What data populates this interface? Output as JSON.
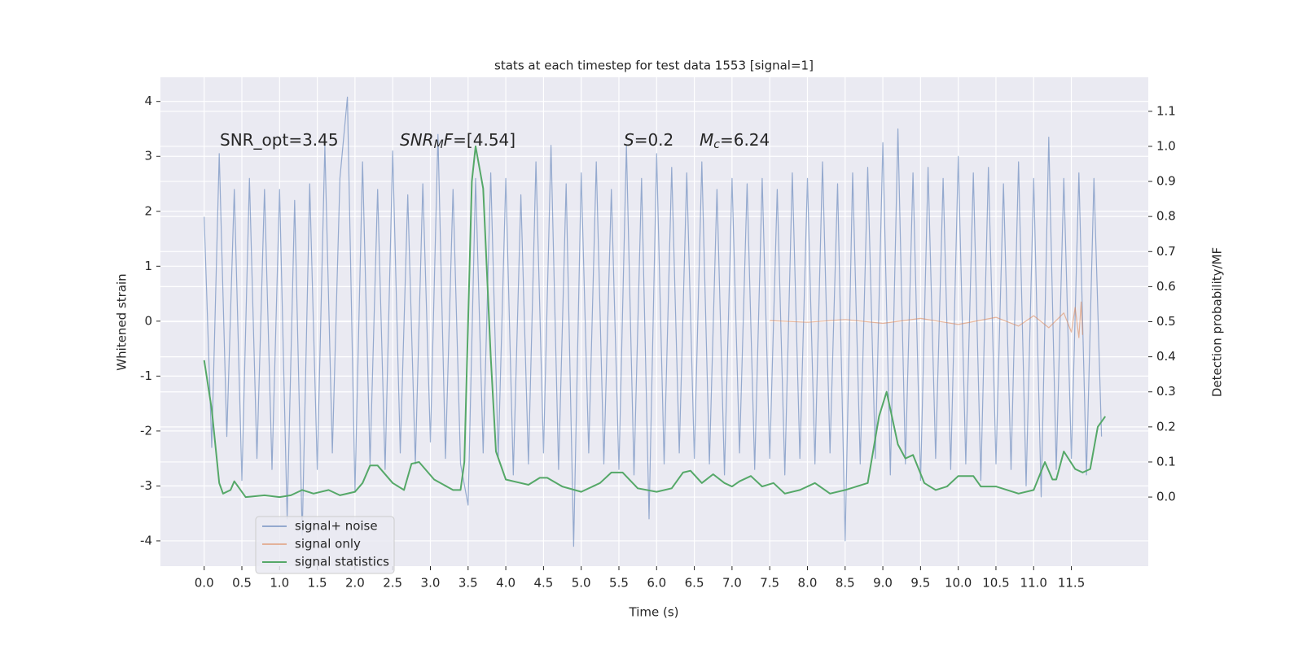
{
  "chart_data": {
    "type": "line",
    "title": "stats at each timestep for test data 1553 [signal=1]",
    "xlabel": "Time (s)",
    "ylabel": "Whitened strain",
    "y2label": "Detection probability/MF",
    "xlim": [
      -0.58,
      12.52
    ],
    "ylim": [
      -4.46,
      4.44
    ],
    "y2lim": [
      -0.197,
      1.197
    ],
    "xticks": [
      {
        "value": 0,
        "label": "0.0"
      },
      0.5,
      {
        "value": 1,
        "label": "1.0"
      },
      1.5,
      {
        "value": 2,
        "label": "2.0"
      },
      2.5,
      {
        "value": 3,
        "label": "3.0"
      },
      3.5,
      {
        "value": 4,
        "label": "4.0"
      },
      4.5,
      {
        "value": 5,
        "label": "5.0"
      },
      5.5,
      {
        "value": 6,
        "label": "6.0"
      },
      6.5,
      {
        "value": 7,
        "label": "7.0"
      },
      7.5,
      {
        "value": 8,
        "label": "8.0"
      },
      8.5,
      {
        "value": 9,
        "label": "9.0"
      },
      9.5,
      {
        "value": 10,
        "label": "10.0"
      },
      10.5,
      {
        "value": 11,
        "label": "11.0"
      },
      11.5
    ],
    "yticks": [
      -4,
      -3,
      -2,
      -1,
      0,
      1,
      2,
      3,
      4
    ],
    "y2ticks": [
      {
        "value": 0,
        "label": "0.0"
      },
      0.1,
      0.2,
      0.3,
      0.4,
      0.5,
      0.6,
      0.7,
      0.8,
      0.9,
      {
        "value": 1,
        "label": "1.0"
      },
      1.1
    ],
    "grid": true,
    "legend": "lower left",
    "annotations": [
      [
        {
          "text": "SNR_opt=3.45",
          "style": "normal"
        }
      ],
      [
        {
          "text": "SNR",
          "style": "italic"
        },
        {
          "text": "M",
          "style": "sub"
        },
        {
          "text": "F",
          "style": "italic"
        },
        {
          "text": "=[4.54]",
          "style": "normal"
        }
      ],
      [
        {
          "text": "S",
          "style": "italic"
        },
        {
          "text": "=0.2",
          "style": "normal"
        }
      ],
      [
        {
          "text": "M",
          "style": "italic"
        },
        {
          "text": "c",
          "style": "sub"
        },
        {
          "text": "=6.24",
          "style": "normal"
        }
      ]
    ],
    "series": [
      {
        "name": "signal+ noise",
        "color": "#4c72b0",
        "axis": "y",
        "x": [
          0,
          0.1,
          0.2,
          0.3,
          0.4,
          0.5,
          0.6,
          0.7,
          0.8,
          0.9,
          1,
          1.1,
          1.2,
          1.3,
          1.4,
          1.5,
          1.6,
          1.7,
          1.8,
          1.9,
          2,
          2.1,
          2.2,
          2.3,
          2.4,
          2.5,
          2.6,
          2.7,
          2.8,
          2.9,
          3,
          3.1,
          3.2,
          3.3,
          3.4,
          3.5,
          3.6,
          3.7,
          3.8,
          3.9,
          4,
          4.1,
          4.2,
          4.3,
          4.4,
          4.5,
          4.6,
          4.7,
          4.8,
          4.9,
          5,
          5.1,
          5.2,
          5.3,
          5.4,
          5.5,
          5.6,
          5.7,
          5.8,
          5.9,
          6,
          6.1,
          6.2,
          6.3,
          6.4,
          6.5,
          6.6,
          6.7,
          6.8,
          6.9,
          7,
          7.1,
          7.2,
          7.3,
          7.4,
          7.5,
          7.6,
          7.7,
          7.8,
          7.9,
          8,
          8.1,
          8.2,
          8.3,
          8.4,
          8.5,
          8.6,
          8.7,
          8.8,
          8.9,
          9,
          9.1,
          9.2,
          9.3,
          9.4,
          9.5,
          9.6,
          9.7,
          9.8,
          9.9,
          10,
          10.1,
          10.2,
          10.3,
          10.4,
          10.5,
          10.6,
          10.7,
          10.8,
          10.9,
          11,
          11.1,
          11.2,
          11.3,
          11.4,
          11.5,
          11.6,
          11.7,
          11.8,
          11.9
        ],
        "values": [
          1.9,
          -2.3,
          3.05,
          -2.1,
          2.4,
          -2.9,
          2.6,
          -2.5,
          2.4,
          -2.7,
          2.4,
          -3.6,
          2.2,
          -3.9,
          2.5,
          -2.7,
          3.2,
          -2.4,
          2.6,
          4.08,
          -3.1,
          2.9,
          -2.6,
          2.4,
          -2.7,
          3.1,
          -2.4,
          2.3,
          -2.6,
          2.5,
          -2.2,
          3.4,
          -2.5,
          2.4,
          -2.6,
          -3.35,
          2.6,
          -2.4,
          2.7,
          -2.5,
          2.6,
          -2.8,
          2.3,
          -2.6,
          2.9,
          -2.4,
          3.2,
          -2.7,
          2.5,
          -4.1,
          2.7,
          -2.4,
          2.9,
          -2.6,
          2.4,
          -2.7,
          3.2,
          -2.8,
          2.6,
          -3.6,
          3.05,
          -2.6,
          2.8,
          -2.4,
          2.7,
          -2.5,
          2.9,
          -2.6,
          2.4,
          -2.8,
          2.6,
          -2.4,
          2.5,
          -2.7,
          2.6,
          -2.5,
          2.4,
          -2.8,
          2.7,
          -2.5,
          2.6,
          -2.6,
          2.9,
          -2.4,
          2.5,
          -4.0,
          2.7,
          -2.6,
          2.8,
          -2.5,
          3.25,
          -2.8,
          3.5,
          -2.6,
          2.7,
          -2.9,
          2.8,
          -2.5,
          2.6,
          -2.7,
          3.0,
          -2.6,
          2.7,
          -2.9,
          2.8,
          -2.6,
          2.5,
          -2.7,
          2.9,
          -3.0,
          2.6,
          -3.2,
          3.35,
          -2.7,
          2.6,
          -2.5,
          2.7,
          -2.8,
          2.6,
          -2.1
        ]
      },
      {
        "name": "signal only",
        "color": "#dd8452",
        "axis": "y",
        "x": [
          7.5,
          8,
          8.5,
          9,
          9.5,
          10,
          10.5,
          10.8,
          11,
          11.2,
          11.4,
          11.5,
          11.55,
          11.6,
          11.63,
          11.65
        ],
        "values": [
          0.01,
          -0.02,
          0.03,
          -0.04,
          0.05,
          -0.06,
          0.07,
          -0.09,
          0.1,
          -0.12,
          0.15,
          -0.2,
          0.25,
          -0.3,
          0.35,
          -0.25
        ]
      },
      {
        "name": "signal statistics",
        "color": "#55a868",
        "axis": "y2",
        "x": [
          0,
          0.1,
          0.2,
          0.25,
          0.35,
          0.4,
          0.55,
          0.8,
          1,
          1.15,
          1.3,
          1.45,
          1.65,
          1.8,
          2,
          2.1,
          2.2,
          2.3,
          2.5,
          2.65,
          2.75,
          2.85,
          3.05,
          3.3,
          3.4,
          3.45,
          3.55,
          3.6,
          3.7,
          3.8,
          3.87,
          4,
          4.3,
          4.45,
          4.55,
          4.75,
          5,
          5.25,
          5.4,
          5.55,
          5.75,
          6,
          6.2,
          6.35,
          6.45,
          6.6,
          6.75,
          6.9,
          7,
          7.1,
          7.25,
          7.4,
          7.55,
          7.7,
          7.9,
          8.1,
          8.3,
          8.5,
          8.8,
          8.95,
          9.05,
          9.2,
          9.3,
          9.4,
          9.55,
          9.7,
          9.85,
          10,
          10.2,
          10.3,
          10.5,
          10.8,
          11,
          11.15,
          11.25,
          11.3,
          11.4,
          11.55,
          11.65,
          11.75,
          11.85,
          11.95
        ],
        "values": [
          0.39,
          0.25,
          0.04,
          0.01,
          0.02,
          0.045,
          0.0,
          0.005,
          0.0,
          0.005,
          0.02,
          0.01,
          0.02,
          0.005,
          0.015,
          0.04,
          0.09,
          0.09,
          0.04,
          0.02,
          0.095,
          0.1,
          0.05,
          0.02,
          0.02,
          0.1,
          0.9,
          1.0,
          0.88,
          0.4,
          0.13,
          0.05,
          0.035,
          0.055,
          0.055,
          0.03,
          0.015,
          0.04,
          0.07,
          0.07,
          0.025,
          0.015,
          0.025,
          0.07,
          0.075,
          0.04,
          0.065,
          0.04,
          0.03,
          0.045,
          0.06,
          0.03,
          0.04,
          0.01,
          0.02,
          0.04,
          0.01,
          0.02,
          0.04,
          0.23,
          0.3,
          0.15,
          0.11,
          0.12,
          0.04,
          0.02,
          0.03,
          0.06,
          0.06,
          0.03,
          0.03,
          0.01,
          0.02,
          0.1,
          0.05,
          0.05,
          0.13,
          0.08,
          0.07,
          0.08,
          0.2,
          0.23
        ]
      }
    ]
  }
}
